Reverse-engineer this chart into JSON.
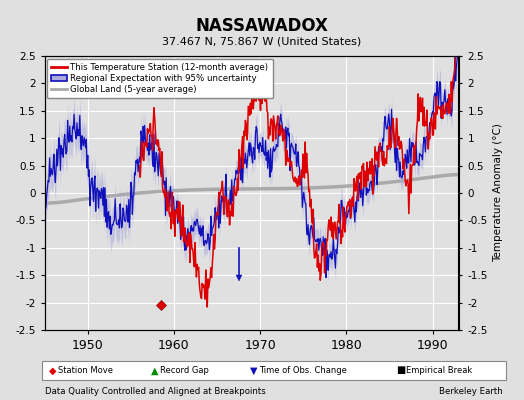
{
  "title": "NASSAWADOX",
  "subtitle": "37.467 N, 75.867 W (United States)",
  "footer_left": "Data Quality Controlled and Aligned at Breakpoints",
  "footer_right": "Berkeley Earth",
  "ylabel": "Temperature Anomaly (°C)",
  "xlim": [
    1945,
    1993
  ],
  "ylim": [
    -2.5,
    2.5
  ],
  "yticks": [
    -2.5,
    -2,
    -1.5,
    -1,
    -0.5,
    0,
    0.5,
    1,
    1.5,
    2,
    2.5
  ],
  "xticks": [
    1950,
    1960,
    1970,
    1980,
    1990
  ],
  "bg_color": "#e0e0e0",
  "plot_bg_color": "#e0e0e0",
  "grid_color": "#ffffff",
  "station_move_x": 1958.5,
  "station_move_y": -2.05,
  "obs_change_x": 1967.5,
  "obs_change_y": -1.55,
  "red_line_color": "#dd0000",
  "blue_line_color": "#1111bb",
  "blue_fill_color": "#aaaadd",
  "gray_line_color": "#aaaaaa",
  "red_missing_start": 1945,
  "red_missing_end": 1956,
  "red_visible_start": 1956
}
